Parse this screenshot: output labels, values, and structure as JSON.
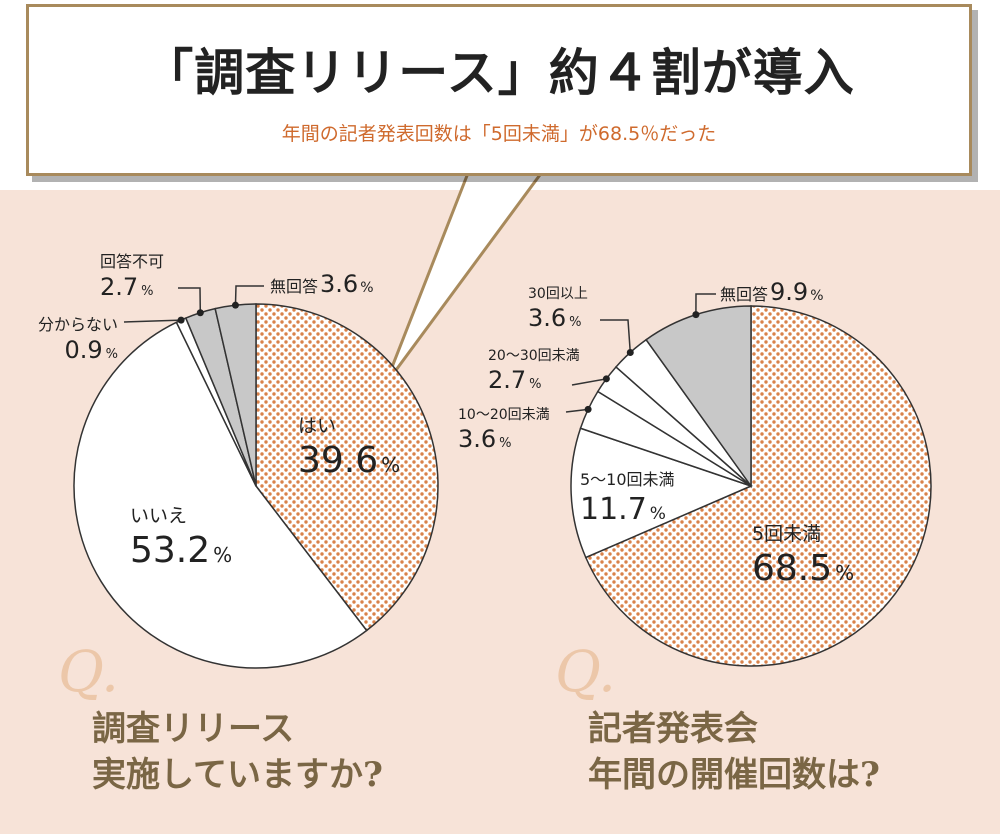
{
  "header": {
    "title": "「調査リリース」約４割が導入",
    "subtitle": "年間の記者発表回数は「5回未満」が68.5％だった"
  },
  "colors": {
    "accent": "#cf6a2d",
    "frame": "#a88a5c",
    "panel": "#f7e3d8",
    "question": "#7a6645",
    "q_mark": "#ecc7a9",
    "hatch": "#d9824a",
    "gray": "#c8c8c8"
  },
  "question_mark": "Q.",
  "chart_data": [
    {
      "type": "pie",
      "question": [
        "調査リリース",
        "実施していますか?"
      ],
      "slices": [
        {
          "label": "はい",
          "value": 39.6,
          "unit": "%",
          "fill": "hatch"
        },
        {
          "label": "いいえ",
          "value": 53.2,
          "unit": "%",
          "fill": "white"
        },
        {
          "label": "分からない",
          "value": 0.9,
          "unit": "%",
          "fill": "white"
        },
        {
          "label": "回答不可",
          "value": 2.7,
          "unit": "%",
          "fill": "gray"
        },
        {
          "label": "無回答",
          "value": 3.6,
          "unit": "%",
          "fill": "gray"
        }
      ]
    },
    {
      "type": "pie",
      "question": [
        "記者発表会",
        "年間の開催回数は?"
      ],
      "slices": [
        {
          "label": "5回未満",
          "value": 68.5,
          "unit": "%",
          "fill": "hatch"
        },
        {
          "label": "5〜10回未満",
          "value": 11.7,
          "unit": "%",
          "fill": "white"
        },
        {
          "label": "10〜20回未満",
          "value": 3.6,
          "unit": "%",
          "fill": "white"
        },
        {
          "label": "20〜30回未満",
          "value": 2.7,
          "unit": "%",
          "fill": "white"
        },
        {
          "label": "30回以上",
          "value": 3.6,
          "unit": "%",
          "fill": "white"
        },
        {
          "label": "無回答",
          "value": 9.9,
          "unit": "%",
          "fill": "gray"
        }
      ]
    }
  ]
}
